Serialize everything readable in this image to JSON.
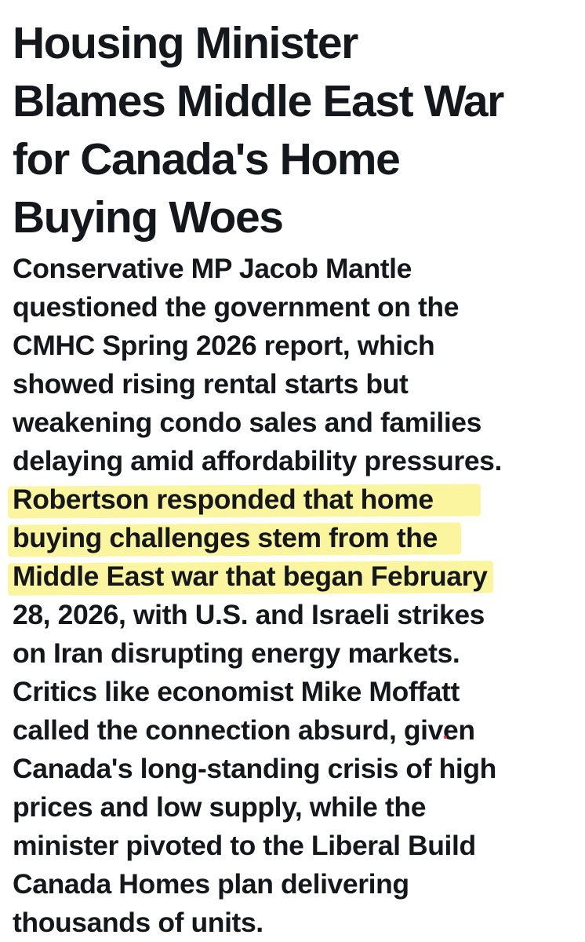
{
  "article": {
    "headline_lines": [
      "Housing Minister",
      "Blames Middle East War",
      "for Canada's Home",
      "Buying Woes"
    ],
    "body_lines": [
      "Conservative MP Jacob Mantle",
      "questioned the government on the",
      "CMHC Spring 2026 report, which",
      "showed rising rental starts but",
      "weakening condo sales and families",
      "delaying amid affordability pressures.",
      "Robertson responded that home",
      "buying challenges stem from the",
      "Middle East war that began February",
      "28, 2026, with U.S. and Israeli strikes",
      "on Iran disrupting energy markets.",
      "Critics like economist Mike Moffatt",
      "called the connection absurd, given",
      "Canada's long-standing crisis of high",
      "prices and low supply, while the",
      "minister pivoted to the Liberal Build",
      "Canada Homes plan delivering",
      "thousands of units."
    ],
    "highlighted_line_indexes": [
      6,
      7,
      8
    ],
    "highlight_color": "#fbf59f",
    "text_color": "#14171c",
    "background_color": "#ffffff"
  }
}
